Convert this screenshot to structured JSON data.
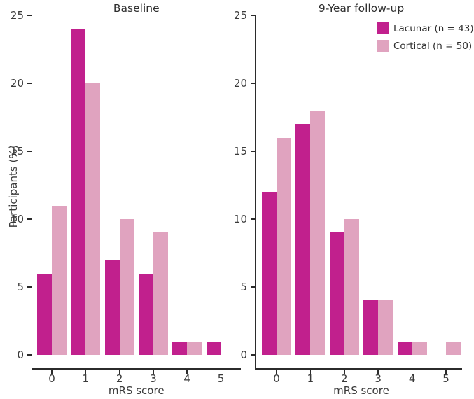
{
  "figure": {
    "ylabel": "Participants (%)",
    "colors": {
      "lacunar": "#C1208D",
      "cortical": "#E0A3BF",
      "axis": "#2B2B2B",
      "text": "#3A3A3A"
    },
    "legend": [
      {
        "key": "lacunar",
        "label": "Lacunar (n = 43)"
      },
      {
        "key": "cortical",
        "label": "Cortical (n = 50)"
      }
    ]
  },
  "chart_data": [
    {
      "type": "bar",
      "title": "Baseline",
      "xlabel": "mRS score",
      "ylabel": "Participants (%)",
      "categories": [
        "0",
        "1",
        "2",
        "3",
        "4",
        "5"
      ],
      "series": [
        {
          "name": "Lacunar (n = 43)",
          "key": "lacunar",
          "values": [
            6,
            24,
            7,
            6,
            1,
            1
          ]
        },
        {
          "name": "Cortical (n = 50)",
          "key": "cortical",
          "values": [
            11,
            20,
            10,
            9,
            1,
            0
          ]
        }
      ],
      "ylim": [
        0,
        25
      ],
      "yticks": [
        0,
        5,
        10,
        15,
        20,
        25
      ],
      "grid": false,
      "legend_position": "none"
    },
    {
      "type": "bar",
      "title": "9-Year follow-up",
      "xlabel": "mRS score",
      "ylabel": "",
      "categories": [
        "0",
        "1",
        "2",
        "3",
        "4",
        "5"
      ],
      "series": [
        {
          "name": "Lacunar (n = 43)",
          "key": "lacunar",
          "values": [
            12,
            17,
            9,
            4,
            1,
            0
          ]
        },
        {
          "name": "Cortical (n = 50)",
          "key": "cortical",
          "values": [
            16,
            18,
            10,
            4,
            1,
            1
          ]
        }
      ],
      "ylim": [
        0,
        25
      ],
      "yticks": [
        0,
        5,
        10,
        15,
        20,
        25
      ],
      "grid": false,
      "legend_position": "upper-right"
    }
  ]
}
